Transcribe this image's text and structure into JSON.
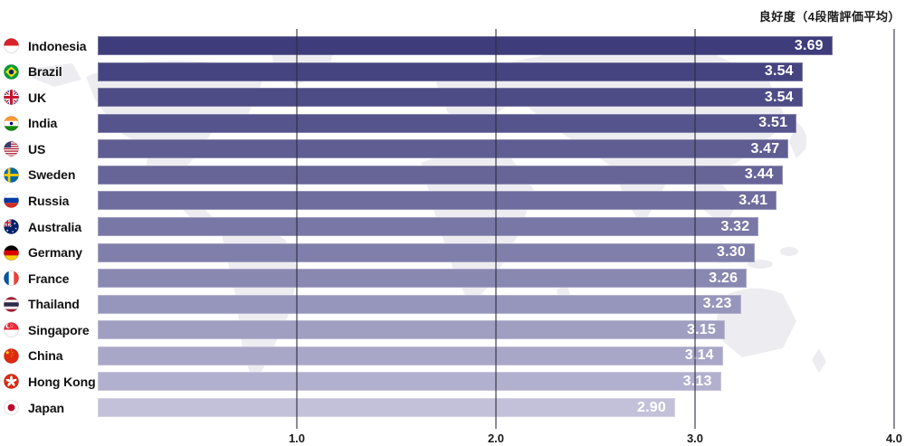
{
  "title": "良好度（4段階評価平均）",
  "chart_data": {
    "type": "bar",
    "orientation": "horizontal",
    "title": "良好度（4段階評価平均）",
    "categories": [
      "Indonesia",
      "Brazil",
      "UK",
      "India",
      "US",
      "Sweden",
      "Russia",
      "Australia",
      "Germany",
      "France",
      "Thailand",
      "Singapore",
      "China",
      "Hong Kong",
      "Japan"
    ],
    "values": [
      3.69,
      3.54,
      3.54,
      3.51,
      3.47,
      3.44,
      3.41,
      3.32,
      3.3,
      3.26,
      3.23,
      3.15,
      3.14,
      3.13,
      2.9
    ],
    "value_labels": [
      "3.69",
      "3.54",
      "3.54",
      "3.51",
      "3.47",
      "3.44",
      "3.41",
      "3.32",
      "3.30",
      "3.26",
      "3.23",
      "3.15",
      "3.14",
      "3.13",
      "2.90"
    ],
    "flags": [
      "id",
      "br",
      "gb",
      "in",
      "us",
      "se",
      "ru",
      "au",
      "de",
      "fr",
      "th",
      "sg",
      "cn",
      "hk",
      "jp"
    ],
    "xlim": [
      0,
      4
    ],
    "x_ticks": [
      "1.0",
      "2.0",
      "3.0",
      "4.0"
    ],
    "x_tick_values": [
      1,
      2,
      3,
      4
    ],
    "bar_colors": [
      "#3e3c7b",
      "#464480",
      "#4e4c86",
      "#56548c",
      "#5f5d92",
      "#676598",
      "#6f6d9e",
      "#7877a5",
      "#807fab",
      "#8988b1",
      "#9695bb",
      "#a09fc2",
      "#a8a7c8",
      "#b1b0ce",
      "#c2c1d9"
    ],
    "grid": "vertical-lines-at-ticks",
    "legend": "none",
    "value_text_color": "#ffffff",
    "label_text_color": "#111111",
    "gridline_color": "rgba(45,45,62,0.55)",
    "map_watermark_color": "#ededf1"
  }
}
